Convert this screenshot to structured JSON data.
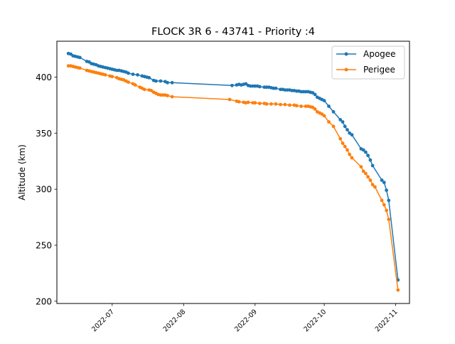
{
  "chart_data": {
    "type": "line",
    "title": "FLOCK 3R 6 - 43741 - Priority :4",
    "xlabel": "",
    "ylabel": "Altitude (km)",
    "xlim": [
      "2022-06-07",
      "2022-11-07"
    ],
    "ylim": [
      198,
      432
    ],
    "x_ticks": [
      "2022-07",
      "2022-08",
      "2022-09",
      "2022-10",
      "2022-11"
    ],
    "y_ticks": [
      200,
      250,
      300,
      350,
      400
    ],
    "grid": false,
    "legend_position": "top-right",
    "colors": {
      "Apogee": "#1f77b4",
      "Perigee": "#ff7f0e"
    },
    "series": [
      {
        "name": "Apogee",
        "points": [
          [
            "2022-06-12",
            421
          ],
          [
            "2022-06-13",
            420.5
          ],
          [
            "2022-06-14",
            419
          ],
          [
            "2022-06-15",
            418.5
          ],
          [
            "2022-06-16",
            418
          ],
          [
            "2022-06-17",
            417.5
          ],
          [
            "2022-06-20",
            414
          ],
          [
            "2022-06-21",
            413.5
          ],
          [
            "2022-06-22",
            412
          ],
          [
            "2022-06-23",
            411.5
          ],
          [
            "2022-06-24",
            411
          ],
          [
            "2022-06-25",
            410
          ],
          [
            "2022-06-26",
            409.5
          ],
          [
            "2022-06-27",
            409
          ],
          [
            "2022-06-28",
            408.5
          ],
          [
            "2022-06-29",
            408
          ],
          [
            "2022-06-30",
            407.5
          ],
          [
            "2022-07-01",
            407
          ],
          [
            "2022-07-02",
            406.5
          ],
          [
            "2022-07-03",
            406
          ],
          [
            "2022-07-04",
            406
          ],
          [
            "2022-07-05",
            405.5
          ],
          [
            "2022-07-06",
            405
          ],
          [
            "2022-07-07",
            404.5
          ],
          [
            "2022-07-08",
            403.5
          ],
          [
            "2022-07-10",
            402.5
          ],
          [
            "2022-07-12",
            402
          ],
          [
            "2022-07-14",
            401
          ],
          [
            "2022-07-15",
            400.5
          ],
          [
            "2022-07-16",
            400
          ],
          [
            "2022-07-17",
            399.5
          ],
          [
            "2022-07-19",
            397
          ],
          [
            "2022-07-20",
            396.5
          ],
          [
            "2022-07-22",
            396.5
          ],
          [
            "2022-07-24",
            396
          ],
          [
            "2022-07-25",
            395
          ],
          [
            "2022-07-27",
            395
          ],
          [
            "2022-08-22",
            392.5
          ],
          [
            "2022-08-24",
            393
          ],
          [
            "2022-08-25",
            393.5
          ],
          [
            "2022-08-26",
            393
          ],
          [
            "2022-08-27",
            393.5
          ],
          [
            "2022-08-28",
            394
          ],
          [
            "2022-08-29",
            392.5
          ],
          [
            "2022-08-30",
            392
          ],
          [
            "2022-08-31",
            392
          ],
          [
            "2022-09-01",
            392
          ],
          [
            "2022-09-02",
            392
          ],
          [
            "2022-09-03",
            391.5
          ],
          [
            "2022-09-05",
            391
          ],
          [
            "2022-09-06",
            391
          ],
          [
            "2022-09-07",
            391
          ],
          [
            "2022-09-08",
            390.5
          ],
          [
            "2022-09-09",
            390
          ],
          [
            "2022-09-10",
            390
          ],
          [
            "2022-09-12",
            389
          ],
          [
            "2022-09-13",
            389
          ],
          [
            "2022-09-14",
            388.5
          ],
          [
            "2022-09-15",
            388.5
          ],
          [
            "2022-09-16",
            388.5
          ],
          [
            "2022-09-17",
            388
          ],
          [
            "2022-09-18",
            388
          ],
          [
            "2022-09-19",
            387.5
          ],
          [
            "2022-09-20",
            387.5
          ],
          [
            "2022-09-21",
            387
          ],
          [
            "2022-09-22",
            387
          ],
          [
            "2022-09-23",
            387
          ],
          [
            "2022-09-24",
            387
          ],
          [
            "2022-09-25",
            386.5
          ],
          [
            "2022-09-26",
            386
          ],
          [
            "2022-09-27",
            384.5
          ],
          [
            "2022-09-28",
            382
          ],
          [
            "2022-09-29",
            381
          ],
          [
            "2022-09-30",
            380
          ],
          [
            "2022-10-01",
            379
          ],
          [
            "2022-10-03",
            374
          ],
          [
            "2022-10-05",
            369
          ],
          [
            "2022-10-08",
            362
          ],
          [
            "2022-10-09",
            360
          ],
          [
            "2022-10-10",
            356
          ],
          [
            "2022-10-11",
            353
          ],
          [
            "2022-10-12",
            350
          ],
          [
            "2022-10-13",
            348.5
          ],
          [
            "2022-10-17",
            336
          ],
          [
            "2022-10-18",
            335
          ],
          [
            "2022-10-19",
            333
          ],
          [
            "2022-10-20",
            330
          ],
          [
            "2022-10-21",
            326
          ],
          [
            "2022-10-22",
            321
          ],
          [
            "2022-10-26",
            308
          ],
          [
            "2022-10-27",
            306
          ],
          [
            "2022-10-28",
            299
          ],
          [
            "2022-10-29",
            290
          ],
          [
            "2022-11-02",
            219
          ]
        ]
      },
      {
        "name": "Perigee",
        "points": [
          [
            "2022-06-12",
            410
          ],
          [
            "2022-06-13",
            410
          ],
          [
            "2022-06-14",
            409.5
          ],
          [
            "2022-06-15",
            409
          ],
          [
            "2022-06-16",
            408.5
          ],
          [
            "2022-06-17",
            408
          ],
          [
            "2022-06-20",
            406
          ],
          [
            "2022-06-21",
            405.5
          ],
          [
            "2022-06-22",
            405
          ],
          [
            "2022-06-23",
            404.5
          ],
          [
            "2022-06-24",
            404
          ],
          [
            "2022-06-25",
            403.5
          ],
          [
            "2022-06-26",
            403
          ],
          [
            "2022-06-27",
            402.5
          ],
          [
            "2022-06-28",
            402
          ],
          [
            "2022-06-30",
            401
          ],
          [
            "2022-07-01",
            400.5
          ],
          [
            "2022-07-03",
            399.5
          ],
          [
            "2022-07-04",
            398.5
          ],
          [
            "2022-07-05",
            398
          ],
          [
            "2022-07-06",
            397.5
          ],
          [
            "2022-07-07",
            396.5
          ],
          [
            "2022-07-08",
            395.5
          ],
          [
            "2022-07-10",
            394
          ],
          [
            "2022-07-11",
            393
          ],
          [
            "2022-07-13",
            391
          ],
          [
            "2022-07-14",
            390
          ],
          [
            "2022-07-15",
            389
          ],
          [
            "2022-07-17",
            388.5
          ],
          [
            "2022-07-18",
            388
          ],
          [
            "2022-07-19",
            386.5
          ],
          [
            "2022-07-20",
            385.5
          ],
          [
            "2022-07-21",
            384.5
          ],
          [
            "2022-07-22",
            384
          ],
          [
            "2022-07-23",
            384
          ],
          [
            "2022-07-24",
            384
          ],
          [
            "2022-07-25",
            383.5
          ],
          [
            "2022-07-27",
            382.5
          ],
          [
            "2022-08-21",
            380
          ],
          [
            "2022-08-24",
            378.5
          ],
          [
            "2022-08-25",
            378
          ],
          [
            "2022-08-27",
            377.5
          ],
          [
            "2022-08-28",
            377
          ],
          [
            "2022-08-29",
            377.5
          ],
          [
            "2022-08-31",
            377
          ],
          [
            "2022-09-01",
            377
          ],
          [
            "2022-09-03",
            376.5
          ],
          [
            "2022-09-05",
            376.5
          ],
          [
            "2022-09-06",
            376
          ],
          [
            "2022-09-08",
            376
          ],
          [
            "2022-09-10",
            376
          ],
          [
            "2022-09-12",
            375.5
          ],
          [
            "2022-09-14",
            375.5
          ],
          [
            "2022-09-16",
            375
          ],
          [
            "2022-09-18",
            375
          ],
          [
            "2022-09-19",
            374.5
          ],
          [
            "2022-09-21",
            374
          ],
          [
            "2022-09-23",
            374
          ],
          [
            "2022-09-24",
            374
          ],
          [
            "2022-09-25",
            373.5
          ],
          [
            "2022-09-26",
            373
          ],
          [
            "2022-09-27",
            371.5
          ],
          [
            "2022-09-28",
            369
          ],
          [
            "2022-09-29",
            368
          ],
          [
            "2022-09-30",
            367
          ],
          [
            "2022-10-01",
            365.5
          ],
          [
            "2022-10-03",
            360
          ],
          [
            "2022-10-05",
            356
          ],
          [
            "2022-10-08",
            345
          ],
          [
            "2022-10-09",
            341
          ],
          [
            "2022-10-10",
            338
          ],
          [
            "2022-10-11",
            335
          ],
          [
            "2022-10-12",
            331
          ],
          [
            "2022-10-13",
            328
          ],
          [
            "2022-10-17",
            320
          ],
          [
            "2022-10-18",
            316
          ],
          [
            "2022-10-19",
            314
          ],
          [
            "2022-10-20",
            311
          ],
          [
            "2022-10-21",
            308
          ],
          [
            "2022-10-22",
            304
          ],
          [
            "2022-10-23",
            302
          ],
          [
            "2022-10-26",
            290
          ],
          [
            "2022-10-27",
            286
          ],
          [
            "2022-10-28",
            281
          ],
          [
            "2022-10-29",
            273
          ],
          [
            "2022-11-02",
            210
          ]
        ]
      }
    ]
  }
}
